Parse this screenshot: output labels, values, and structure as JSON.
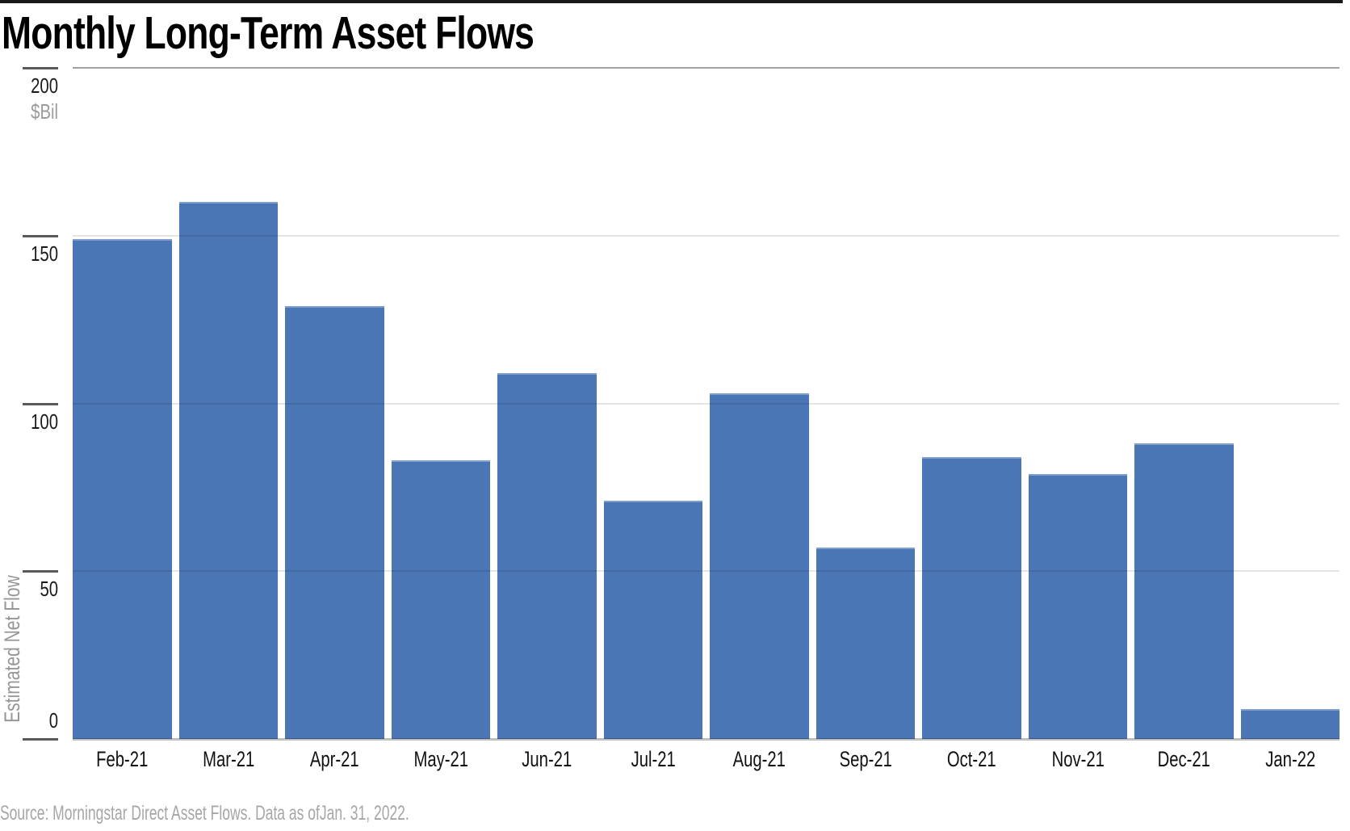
{
  "header": {
    "title": "Monthly Long-Term Asset Flows"
  },
  "chart_data": {
    "type": "bar",
    "title": "Monthly Long-Term Asset Flows",
    "categories": [
      "Feb-21",
      "Mar-21",
      "Apr-21",
      "May-21",
      "Jun-21",
      "Jul-21",
      "Aug-21",
      "Sep-21",
      "Oct-21",
      "Nov-21",
      "Dec-21",
      "Jan-22"
    ],
    "values": [
      149,
      160,
      129,
      83,
      109,
      71,
      103,
      57,
      84,
      79,
      88,
      9
    ],
    "unit_label": "$Bil",
    "ylabel": "Estimated Net Flow",
    "xlabel": "",
    "ylim": [
      0,
      200
    ],
    "yticks": [
      0,
      50,
      100,
      150,
      200
    ],
    "grid": true,
    "legend_position": "none",
    "bar_color": "#4A76B5"
  },
  "footer": {
    "source": "Source: Morningstar Direct Asset Flows. Data as ofJan. 31, 2022."
  },
  "colors": {
    "bar": "#4A76B5",
    "top_rule": "#1a1a1a",
    "grid_top": "#a2a2a2",
    "grid_light": "#e4e4e4",
    "baseline": "#bfbfbf",
    "tick_dash": "#5a5a5a",
    "axis_text": "#1a1a1a",
    "muted_text": "#9b9b9b",
    "source_text": "#a6a6a6"
  }
}
